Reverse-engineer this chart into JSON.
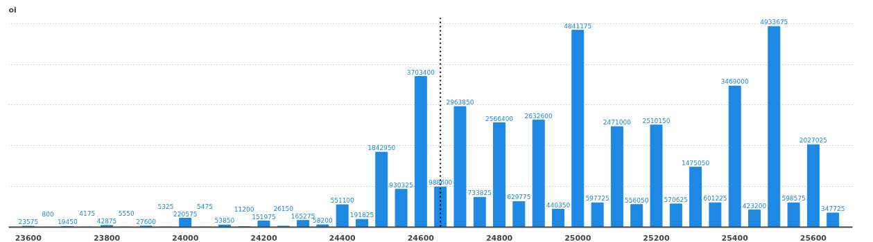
{
  "chart_data": {
    "type": "bar",
    "ylabel": "oi",
    "x": [
      23600,
      23650,
      23700,
      23750,
      23800,
      23850,
      23900,
      23950,
      24000,
      24050,
      24100,
      24150,
      24200,
      24250,
      24300,
      24350,
      24400,
      24450,
      24500,
      24550,
      24600,
      24650,
      24700,
      24750,
      24800,
      24850,
      24900,
      24950,
      25000,
      25050,
      25100,
      25150,
      25200,
      25250,
      25300,
      25350,
      25400,
      25450,
      25500,
      25550,
      25600,
      25650
    ],
    "values": [
      23575,
      800,
      19450,
      4175,
      42875,
      5550,
      27600,
      5325,
      220575,
      5475,
      53850,
      11200,
      151975,
      26150,
      165275,
      58200,
      551100,
      191825,
      1842950,
      930325,
      3703400,
      988600,
      2963850,
      733825,
      2566400,
      629775,
      2632600,
      440350,
      4841175,
      597725,
      2471000,
      556050,
      2510150,
      570625,
      1475050,
      601225,
      3469000,
      423200,
      4933675,
      598575,
      2027025,
      347725
    ],
    "color": "#1e88e5",
    "xlim": [
      23550,
      25700
    ],
    "xticks": [
      23600,
      23800,
      24000,
      24200,
      24400,
      24600,
      24800,
      25000,
      25200,
      25400,
      25600
    ],
    "ylim": [
      0,
      5150000
    ],
    "yticks": [
      {
        "value": 0,
        "label": null
      },
      {
        "value": 1000000,
        "label": null
      },
      {
        "value": 2000000,
        "label": null
      },
      {
        "value": 3000000,
        "label": null
      },
      {
        "value": 4000000,
        "label": null
      },
      {
        "value": 5000000,
        "label": null
      }
    ],
    "tick_labels": "x",
    "grid": "y",
    "data_labels": true,
    "ref_lines": [
      {
        "axis": "x",
        "value": 24650,
        "label": null,
        "color": "#000000",
        "line_style": "dotted"
      }
    ]
  }
}
